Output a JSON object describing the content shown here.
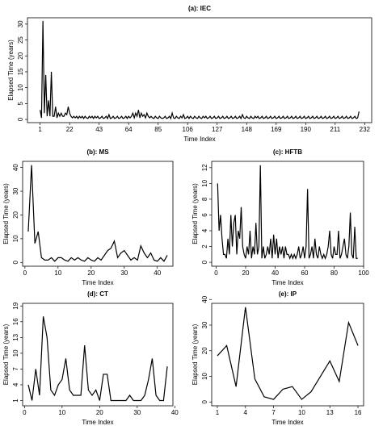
{
  "chart_data": [
    {
      "type": "line",
      "title": "(a): IEC",
      "xlabel": "Time Index",
      "ylabel": "Elapsed Time (years)",
      "color": "#000000",
      "x": [
        1,
        2,
        3,
        4,
        5,
        6,
        7,
        8,
        9,
        10,
        11,
        12,
        13,
        14,
        15,
        16,
        17,
        18,
        19,
        20,
        21,
        22,
        23,
        24,
        25,
        26,
        27,
        28,
        29,
        30,
        31,
        32,
        33,
        34,
        35,
        36,
        37,
        38,
        39,
        40,
        41,
        42,
        43,
        44,
        45,
        46,
        47,
        48,
        49,
        50,
        51,
        52,
        53,
        54,
        55,
        56,
        57,
        58,
        59,
        60,
        61,
        62,
        63,
        64,
        65,
        66,
        67,
        68,
        69,
        70,
        71,
        72,
        73,
        74,
        75,
        76,
        77,
        78,
        79,
        80,
        81,
        82,
        83,
        84,
        85,
        86,
        87,
        88,
        89,
        90,
        91,
        92,
        93,
        94,
        95,
        96,
        97,
        98,
        99,
        100,
        101,
        102,
        103,
        104,
        105,
        106,
        107,
        108,
        109,
        110,
        111,
        112,
        113,
        114,
        115,
        116,
        117,
        118,
        119,
        120,
        121,
        122,
        123,
        124,
        125,
        126,
        127,
        128,
        129,
        130,
        131,
        132,
        133,
        134,
        135,
        136,
        137,
        138,
        139,
        140,
        141,
        142,
        143,
        144,
        145,
        146,
        147,
        148,
        149,
        150,
        151,
        152,
        153,
        154,
        155,
        156,
        157,
        158,
        159,
        160,
        161,
        162,
        163,
        164,
        165,
        166,
        167,
        168,
        169,
        170,
        171,
        172,
        173,
        174,
        175,
        176,
        177,
        178,
        179,
        180,
        181,
        182,
        183,
        184,
        185,
        186,
        187,
        188,
        189,
        190,
        191,
        192,
        193,
        194,
        195,
        196,
        197,
        198,
        199,
        200,
        201,
        202,
        203,
        204,
        205,
        206,
        207,
        208,
        209,
        210,
        211,
        212,
        213,
        214,
        215,
        216,
        217,
        218,
        219,
        220,
        221,
        222,
        223,
        224,
        225,
        226,
        227,
        228
      ],
      "values": [
        3,
        0.5,
        31,
        2,
        14,
        1,
        6,
        1,
        15,
        1,
        1,
        4,
        0.5,
        2,
        1,
        2,
        1,
        1,
        2,
        1.5,
        4,
        2,
        1,
        0.5,
        1,
        0.5,
        1,
        0.3,
        1,
        0.5,
        1,
        0.3,
        1,
        0.5,
        0.3,
        1,
        0.5,
        1,
        0.3,
        1,
        0.5,
        1,
        0.3,
        0.5,
        1,
        0.3,
        0.5,
        1,
        0.3,
        1.5,
        0.3,
        0.5,
        1,
        0.3,
        0.5,
        1,
        0.3,
        0.5,
        1,
        0.3,
        0.5,
        1,
        0.3,
        1,
        0.5,
        1,
        2,
        0.5,
        2,
        1,
        3,
        0.5,
        2,
        1,
        1.5,
        0.5,
        2,
        1,
        0.5,
        1,
        0.5,
        0.3,
        1,
        0.5,
        0.3,
        1,
        0.5,
        0.3,
        0.5,
        1,
        0.3,
        0.5,
        1,
        0.3,
        2,
        0.5,
        0.3,
        1,
        0.5,
        0.3,
        1,
        0.5,
        1.5,
        0.3,
        0.5,
        1,
        0.3,
        1,
        0.5,
        0.3,
        1,
        0.5,
        0.3,
        1,
        0.5,
        0.3,
        1,
        0.5,
        1,
        0.3,
        0.5,
        1,
        0.3,
        0.5,
        1,
        0.3,
        0.5,
        1,
        0.3,
        0.5,
        1,
        0.3,
        0.5,
        1,
        0.3,
        0.5,
        1,
        0.3,
        0.5,
        1,
        0.3,
        0.5,
        1,
        0.3,
        1.5,
        0.5,
        0.3,
        1,
        0.5,
        0.3,
        1,
        0.5,
        0.3,
        1,
        0.5,
        1,
        0.3,
        0.5,
        1,
        0.3,
        0.5,
        1,
        0.3,
        0.5,
        1,
        0.3,
        0.5,
        1,
        0.3,
        0.5,
        1,
        0.3,
        0.5,
        1,
        0.3,
        0.5,
        1,
        0.3,
        0.5,
        1,
        0.3,
        0.5,
        1,
        0.3,
        0.5,
        1,
        0.3,
        0.5,
        1,
        0.3,
        0.5,
        1,
        0.3,
        0.5,
        1,
        0.3,
        0.5,
        1,
        0.3,
        0.5,
        1,
        0.3,
        0.5,
        1,
        0.3,
        0.5,
        1,
        0.3,
        0.5,
        1,
        0.3,
        0.5,
        1,
        0.3,
        0.5,
        1,
        0.3,
        0.5,
        1,
        0.3,
        0.5,
        1,
        0.3,
        0.5,
        1,
        0.3,
        0.5,
        2.5
      ],
      "xlim": [
        -8,
        237
      ],
      "xticks": [
        1,
        22,
        43,
        64,
        85,
        106,
        127,
        148,
        169,
        190,
        211,
        232
      ],
      "ylim": [
        -1,
        32
      ],
      "yticks": [
        0,
        5,
        10,
        15,
        20,
        25,
        30
      ]
    },
    {
      "type": "line",
      "title": "(b): MS",
      "xlabel": "Time Index",
      "ylabel": "Elapsed Time (years)",
      "color": "#000000",
      "x": [
        1,
        2,
        3,
        4,
        5,
        6,
        7,
        8,
        9,
        10,
        11,
        12,
        13,
        14,
        15,
        16,
        17,
        18,
        19,
        20,
        21,
        22,
        23,
        24,
        25,
        26,
        27,
        28,
        29,
        30,
        31,
        32,
        33,
        34,
        35,
        36,
        37,
        38,
        39,
        40,
        41,
        42,
        43
      ],
      "values": [
        13,
        41,
        8,
        13,
        2,
        1,
        1,
        2,
        0.5,
        2,
        2,
        1,
        0.5,
        2,
        1,
        2,
        1,
        0.5,
        2,
        1,
        0.5,
        2,
        1,
        3,
        5,
        6,
        9,
        2,
        4,
        5,
        3,
        1,
        2,
        1,
        7,
        4,
        2,
        4,
        1,
        0.5,
        2,
        0.5,
        3
      ],
      "xlim": [
        -0.7,
        44.7
      ],
      "xticks": [
        0,
        10,
        20,
        30,
        40
      ],
      "ylim": [
        -1.6,
        42.6
      ],
      "yticks": [
        0,
        10,
        20,
        30,
        40
      ]
    },
    {
      "type": "line",
      "title": "(c): HFTB",
      "xlabel": "Time Index",
      "ylabel": "Elapsed Time (years)",
      "color": "#000000",
      "x": [
        1,
        2,
        3,
        4,
        5,
        6,
        7,
        8,
        9,
        10,
        11,
        12,
        13,
        14,
        15,
        16,
        17,
        18,
        19,
        20,
        21,
        22,
        23,
        24,
        25,
        26,
        27,
        28,
        29,
        30,
        31,
        32,
        33,
        34,
        35,
        36,
        37,
        38,
        39,
        40,
        41,
        42,
        43,
        44,
        45,
        46,
        47,
        48,
        49,
        50,
        51,
        52,
        53,
        54,
        55,
        56,
        57,
        58,
        59,
        60,
        61,
        62,
        63,
        64,
        65,
        66,
        67,
        68,
        69,
        70,
        71,
        72,
        73,
        74,
        75,
        76,
        77,
        78,
        79,
        80,
        81,
        82,
        83,
        84,
        85,
        86,
        87,
        88,
        89,
        90,
        91,
        92,
        93,
        94,
        95,
        96
      ],
      "values": [
        10,
        4,
        6,
        3,
        1,
        1,
        0.5,
        3,
        1,
        6,
        2,
        5,
        6,
        1,
        4,
        3,
        7,
        2,
        1,
        0.5,
        2,
        1,
        4,
        0.5,
        2,
        1,
        5,
        1,
        2,
        12.3,
        0.5,
        2,
        0.5,
        1,
        2,
        1,
        3,
        0.5,
        3.5,
        1,
        3,
        0.5,
        2,
        1,
        2,
        0.5,
        2,
        1,
        1,
        0.5,
        1,
        0.5,
        1,
        0.5,
        1,
        2,
        0.5,
        1,
        2,
        0.5,
        2,
        9.3,
        0.5,
        1,
        2,
        0.5,
        3,
        1,
        0.5,
        2,
        1,
        0.5,
        1,
        0.5,
        1,
        2,
        4,
        1,
        0.5,
        2,
        1,
        1,
        4,
        0.5,
        1,
        2,
        3,
        1,
        0.5,
        2,
        6.3,
        1,
        0.5,
        4.5,
        0.5,
        0.5
      ],
      "xlim": [
        -3,
        100
      ],
      "xticks": [
        0,
        20,
        40,
        60,
        80,
        100
      ],
      "ylim": [
        -0.5,
        12.8
      ],
      "yticks": [
        0,
        2,
        4,
        6,
        8,
        10,
        12
      ]
    },
    {
      "type": "line",
      "title": "(d): CT",
      "xlabel": "Time Index",
      "ylabel": "Elapsed Time (years)",
      "color": "#000000",
      "x": [
        1,
        2,
        3,
        4,
        5,
        6,
        7,
        8,
        9,
        10,
        11,
        12,
        13,
        14,
        15,
        16,
        17,
        18,
        19,
        20,
        21,
        22,
        23,
        24,
        25,
        26,
        27,
        28,
        29,
        30,
        31,
        32,
        33,
        34,
        35,
        36,
        37,
        38
      ],
      "values": [
        4,
        1,
        7,
        2,
        17,
        13,
        3,
        2,
        4,
        5,
        9,
        3,
        2,
        2,
        2,
        11.5,
        3,
        2,
        3,
        1,
        6,
        6,
        1,
        1,
        1,
        1,
        1,
        2,
        1,
        1,
        1,
        2,
        5,
        9,
        2,
        1,
        1,
        7.5
      ],
      "xlim": [
        -0.5,
        39.5
      ],
      "xticks": [
        0,
        10,
        20,
        30,
        40
      ],
      "ylim": [
        0,
        19.5
      ],
      "yticks": [
        1,
        4,
        7,
        10,
        13,
        16,
        19
      ]
    },
    {
      "type": "line",
      "title": "(e): IP",
      "xlabel": "Time Index",
      "ylabel": "Elapsed Time (years)",
      "color": "#000000",
      "x": [
        1,
        2,
        3,
        4,
        5,
        6,
        7,
        8,
        9,
        10,
        11,
        12,
        13,
        14,
        15,
        16
      ],
      "values": [
        18,
        22,
        6,
        37,
        9,
        2,
        1,
        5,
        6,
        1,
        4,
        10,
        16,
        8,
        31,
        22
      ],
      "xlim": [
        0.4,
        16.6
      ],
      "xticks": [
        1,
        4,
        7,
        10,
        13,
        16
      ],
      "ylim": [
        -1.5,
        38.5
      ],
      "yticks": [
        0,
        10,
        20,
        30,
        40
      ]
    }
  ]
}
